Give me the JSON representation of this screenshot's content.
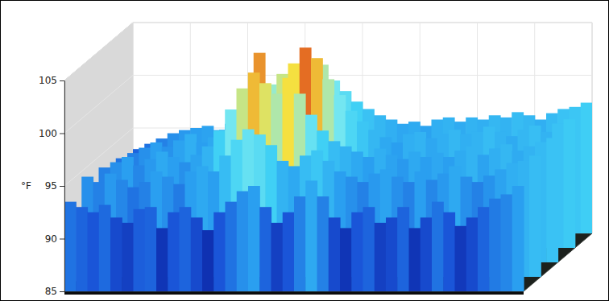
{
  "chart_data": {
    "type": "surface",
    "y_label": "°F",
    "x": [
      0,
      8,
      16,
      24,
      32,
      40,
      48,
      56,
      64,
      72,
      80,
      88,
      96,
      104,
      112,
      120,
      128,
      136,
      144,
      152,
      160,
      168,
      176,
      184,
      192,
      200,
      208,
      216,
      224,
      232,
      240,
      248,
      256,
      264,
      272,
      280,
      288,
      296,
      304,
      312
    ],
    "xlim": [
      0,
      320
    ],
    "xticks": [
      0,
      40,
      80,
      120,
      160,
      200,
      240,
      280,
      320
    ],
    "ylim": [
      85,
      105
    ],
    "yticks": [
      85,
      90,
      95,
      100,
      105
    ],
    "grid": true,
    "tick_labels": "y",
    "series": [
      {
        "values": [
          93.5,
          93.0,
          92.5,
          93.2,
          92.0,
          91.5,
          92.8,
          93.0,
          91.0,
          92.5,
          93.0,
          92.0,
          90.8,
          92.5,
          93.5,
          94.5,
          95.0,
          93.0,
          91.5,
          92.5,
          94.0,
          95.5,
          94.0,
          92.0,
          91.0,
          92.5,
          93.0,
          91.5,
          92.0,
          93.0,
          91.0,
          92.0,
          93.5,
          92.5,
          91.2,
          92.0,
          93.0,
          93.8,
          94.2,
          95.0
        ]
      },
      {
        "values": [
          94.5,
          94.0,
          94.8,
          94.2,
          93.5,
          94.0,
          95.0,
          94.5,
          93.8,
          95.0,
          95.5,
          95.0,
          96.5,
          98.0,
          99.0,
          98.5,
          97.5,
          96.0,
          95.5,
          96.5,
          97.0,
          96.0,
          95.0,
          94.5,
          94.0,
          94.8,
          95.2,
          94.5,
          94.0,
          95.0,
          94.2,
          94.8,
          95.5,
          94.5,
          94.0,
          94.6,
          95.2,
          95.8,
          96.0,
          96.5
        ]
      },
      {
        "values": [
          94.0,
          94.5,
          95.0,
          94.2,
          94.8,
          95.5,
          95.0,
          94.5,
          95.2,
          96.0,
          97.5,
          99.5,
          101.5,
          103.0,
          102.0,
          101.0,
          102.5,
          101.0,
          99.0,
          97.5,
          96.5,
          96.0,
          95.5,
          95.0,
          95.8,
          95.2,
          94.8,
          95.5,
          95.0,
          95.4,
          95.0,
          95.6,
          96.0,
          95.2,
          95.8,
          96.2,
          95.6,
          96.0,
          96.4,
          96.8
        ]
      },
      {
        "values": [
          93.5,
          94.0,
          94.5,
          95.0,
          94.6,
          95.2,
          95.8,
          95.0,
          95.5,
          96.2,
          96.5,
          98.0,
          103.5,
          100.5,
          101.5,
          102.5,
          104.0,
          103.0,
          101.0,
          99.5,
          98.0,
          97.0,
          96.2,
          95.5,
          95.0,
          95.8,
          96.0,
          95.4,
          95.8,
          96.2,
          95.8,
          96.0,
          96.5,
          96.0,
          95.6,
          96.2,
          96.6,
          96.0,
          96.8,
          97.2
        ]
      },
      {
        "values": [
          93.0,
          93.5,
          94.0,
          94.5,
          94.8,
          95.0,
          95.2,
          94.8,
          95.4,
          95.8,
          96.0,
          96.5,
          97.5,
          98.5,
          99.0,
          100.0,
          101.0,
          99.5,
          98.5,
          97.5,
          96.8,
          96.2,
          95.8,
          95.4,
          95.6,
          95.2,
          95.8,
          96.0,
          95.6,
          96.0,
          95.8,
          96.2,
          96.0,
          96.5,
          96.2,
          95.8,
          96.4,
          96.8,
          97.0,
          97.4
        ]
      }
    ]
  }
}
